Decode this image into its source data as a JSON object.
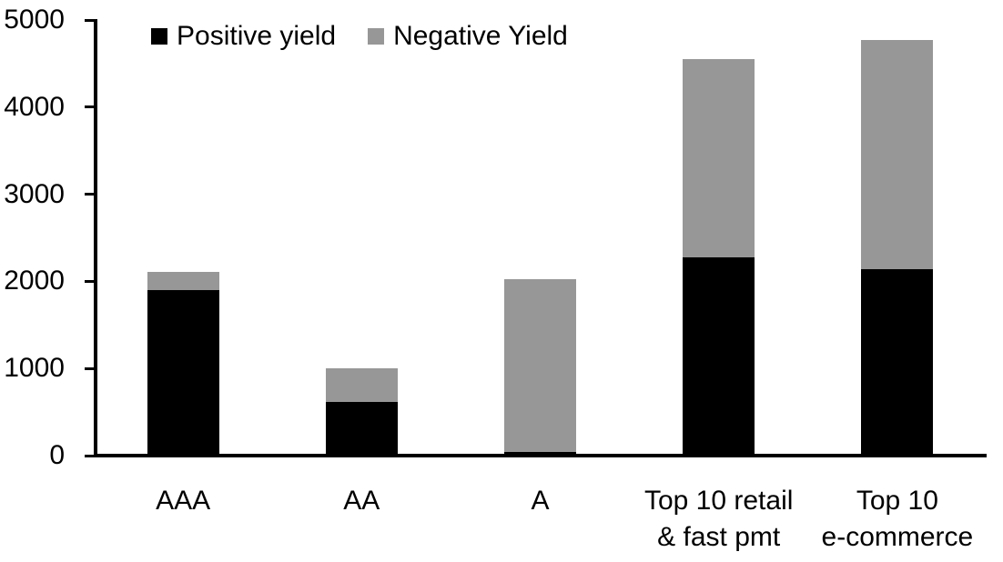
{
  "chart_data": {
    "type": "bar",
    "stacked": true,
    "title": "",
    "xlabel": "",
    "ylabel": "",
    "categories": [
      "AAA",
      "AA",
      "A",
      "Top 10 retail & fast pmt",
      "Top 10 e-commerce"
    ],
    "category_label_lines": [
      [
        "AAA"
      ],
      [
        "AA"
      ],
      [
        "A"
      ],
      [
        "Top 10 retail",
        "& fast pmt"
      ],
      [
        "Top 10",
        "e-commerce"
      ]
    ],
    "series": [
      {
        "name": "Positive yield",
        "color": "#000000",
        "values": [
          1900,
          620,
          40,
          2280,
          2140
        ]
      },
      {
        "name": "Negative Yield",
        "color": "#979797",
        "values": [
          210,
          380,
          1990,
          2270,
          2630
        ]
      }
    ],
    "totals": [
      2110,
      1000,
      2030,
      4550,
      4770
    ],
    "ylim": [
      0,
      5000
    ],
    "y_ticks": [
      0,
      1000,
      2000,
      3000,
      4000,
      5000
    ],
    "grid": "off",
    "legend_position": "top-left-inside"
  },
  "colors": {
    "axis": "#000000",
    "background": "#ffffff",
    "positive_series": "#000000",
    "negative_series": "#979797"
  }
}
